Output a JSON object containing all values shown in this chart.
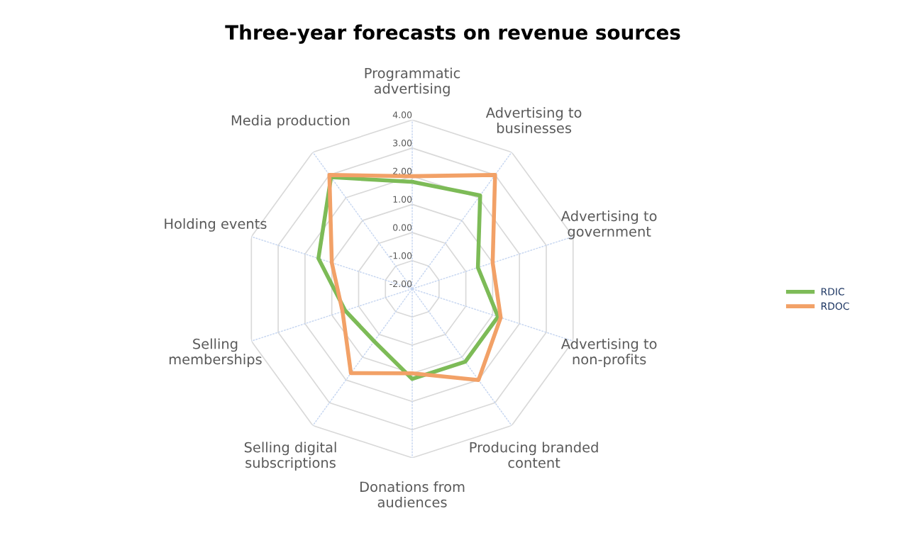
{
  "chart_data": {
    "type": "radar",
    "title": "Three-year forecasts on revenue sources",
    "categories": [
      "Programmatic advertising",
      "Advertising to businesses",
      "Advertising to government",
      "Advertising to non-profits",
      "Producing branded content",
      "Donations from audiences",
      "Selling digital subscriptions",
      "Selling memberships",
      "Holding events",
      "Media production"
    ],
    "series": [
      {
        "name": "RDIC",
        "color": "#7dbb57",
        "values": [
          1.8,
          2.1,
          0.45,
          1.2,
          1.2,
          1.2,
          0.3,
          0.5,
          1.5,
          2.9
        ]
      },
      {
        "name": "RDOC",
        "color": "#f2a167",
        "values": [
          2.0,
          3.0,
          1.0,
          1.3,
          2.0,
          1.0,
          1.7,
          0.6,
          1.0,
          3.0
        ]
      }
    ],
    "ylim": [
      -2,
      4
    ],
    "yticks": [
      {
        "value": -2,
        "label": "-2.00"
      },
      {
        "value": -1,
        "label": "-1.00"
      },
      {
        "value": 0,
        "label": "0.00"
      },
      {
        "value": 1,
        "label": "1.00"
      },
      {
        "value": 2,
        "label": "2.00"
      },
      {
        "value": 3,
        "label": "3.00"
      },
      {
        "value": 4,
        "label": "4.00"
      }
    ],
    "grid": true,
    "legend": "right",
    "marker": "none",
    "line_style": "solid"
  }
}
